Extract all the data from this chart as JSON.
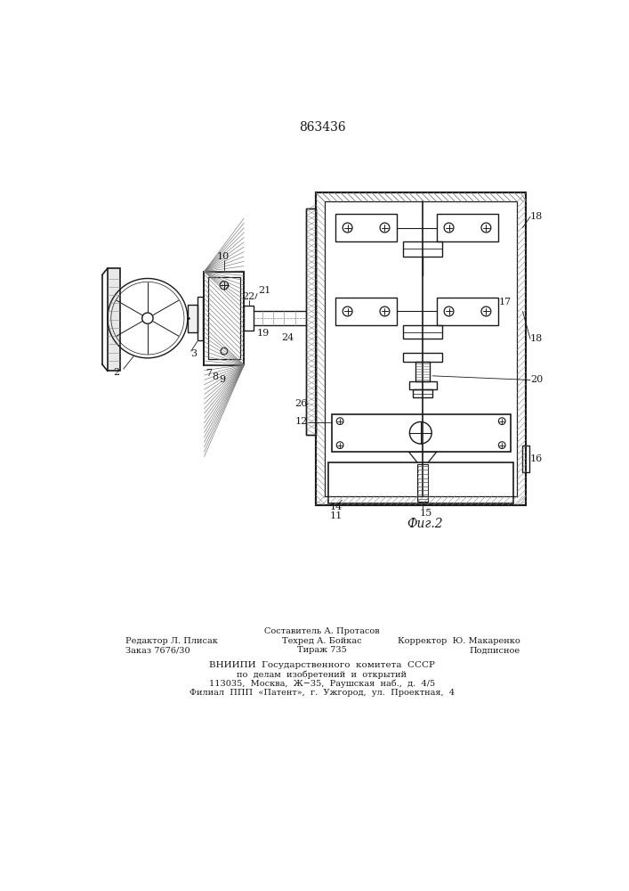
{
  "patent_number": "863436",
  "fig_label": "Фиг.2",
  "footer_line1_left": "Редактор Л. Плисак",
  "footer_line2_left": "Заказ 7676/30",
  "footer_line1_center": "Составитель А. Протасов",
  "footer_line2_center": "Техред А. Бойкас",
  "footer_line3_center": "Тираж 735",
  "footer_line1_right": "Корректор  Ю. Макаренко",
  "footer_line2_right": "Подписное",
  "footer_vniiipi_line1": "ВНИИПИ  Государственного  комитета  СССР",
  "footer_vniiipi_line2": "по  делам  изобретений  и  открытий",
  "footer_vniiipi_line3": "113035,  Москва,  Ж−35,  Раушская  наб.,  д.  4/5",
  "footer_vniiipi_line4": "Филиал  ППП  «Патент»,  г.  Ужгород,  ул.  Проектная,  4",
  "bg_color": "#ffffff",
  "line_color": "#1a1a1a",
  "text_color": "#1a1a1a"
}
